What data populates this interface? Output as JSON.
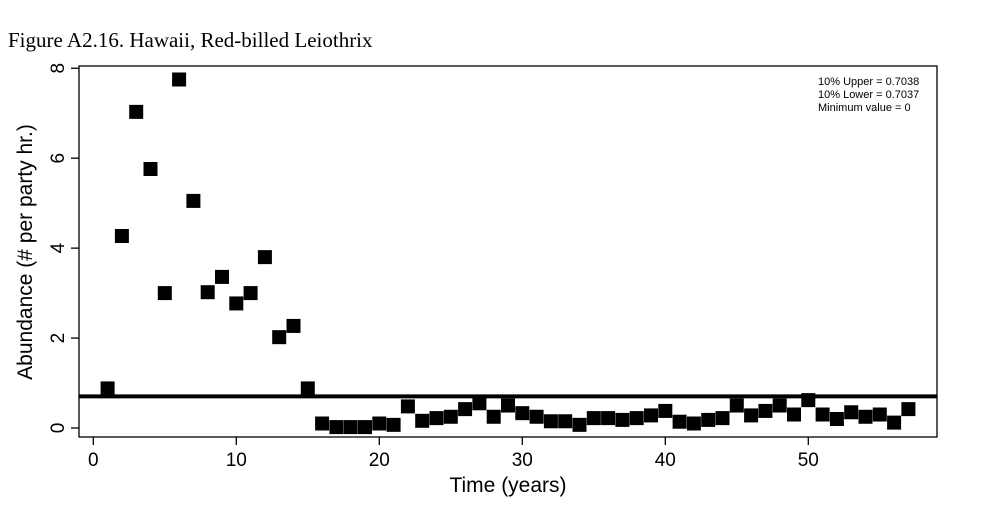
{
  "figure_title": "Figure A2.16. Hawaii, Red-billed Leiothrix",
  "chart_data": {
    "type": "scatter",
    "title": "",
    "xlabel": "Time (years)",
    "ylabel": "Abundance (# per party hr.)",
    "xlim": [
      -1,
      59
    ],
    "ylim": [
      -0.2,
      8.05
    ],
    "xticks": [
      0,
      10,
      20,
      30,
      40,
      50
    ],
    "yticks": [
      0,
      2,
      4,
      6,
      8
    ],
    "threshold": 0.7038,
    "annotations": [
      "10% Upper =  0.7038",
      "10% Lower =  0.7037",
      "Minimum value =  0"
    ],
    "series": [
      {
        "x": [
          1,
          2,
          3,
          4,
          5,
          6,
          7,
          8,
          9,
          10,
          11,
          12,
          13,
          14,
          15,
          16,
          17,
          18,
          19,
          20,
          21,
          22,
          23,
          24,
          25,
          26,
          27,
          28,
          29,
          30,
          31,
          32,
          33,
          34,
          35,
          36,
          37,
          38,
          39,
          40,
          41,
          42,
          43,
          44,
          45,
          46,
          47,
          48,
          49,
          50,
          51,
          52,
          53,
          54,
          55,
          56,
          57
        ],
        "y": [
          0.88,
          4.27,
          7.03,
          5.76,
          3.0,
          7.75,
          5.05,
          3.02,
          3.36,
          2.77,
          3.0,
          3.8,
          2.02,
          2.27,
          0.88,
          0.1,
          0.02,
          0.02,
          0.02,
          0.1,
          0.07,
          0.48,
          0.16,
          0.22,
          0.25,
          0.42,
          0.55,
          0.25,
          0.5,
          0.33,
          0.25,
          0.15,
          0.15,
          0.07,
          0.22,
          0.22,
          0.18,
          0.22,
          0.28,
          0.38,
          0.14,
          0.1,
          0.18,
          0.22,
          0.5,
          0.28,
          0.38,
          0.5,
          0.3,
          0.62,
          0.3,
          0.2,
          0.35,
          0.25,
          0.3,
          0.12,
          0.42
        ]
      }
    ]
  }
}
